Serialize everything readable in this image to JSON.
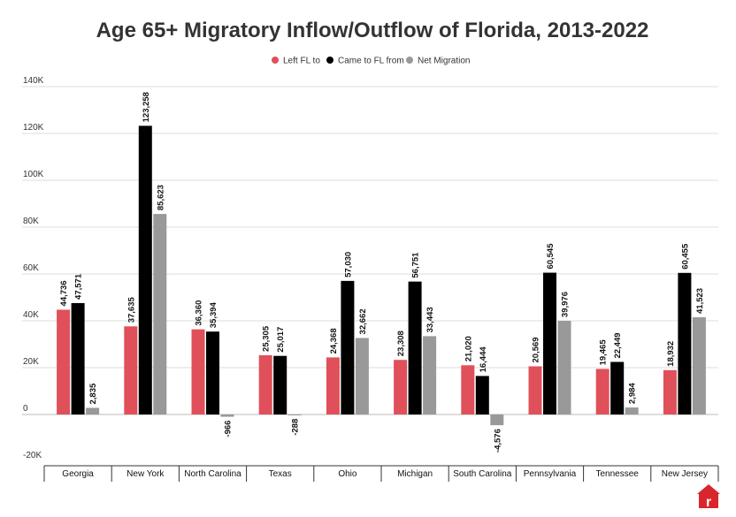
{
  "chart_data": {
    "type": "bar",
    "title": "Age 65+ Migratory Inflow/Outflow of Florida, 2013-2022",
    "categories": [
      "Georgia",
      "New York",
      "North Carolina",
      "Texas",
      "Ohio",
      "Michigan",
      "South Carolina",
      "Pennsylvania",
      "Tennessee",
      "New Jersey"
    ],
    "series": [
      {
        "name": "Left FL to",
        "color": "#e0505a",
        "values": [
          44736,
          37635,
          36360,
          25305,
          24368,
          23308,
          21020,
          20569,
          19465,
          18932
        ],
        "labels": [
          "44,736",
          "37,635",
          "36,360",
          "25,305",
          "24,368",
          "23,308",
          "21,020",
          "20,569",
          "19,465",
          "18,932"
        ]
      },
      {
        "name": "Came to FL from",
        "color": "#000000",
        "values": [
          47571,
          123258,
          35394,
          25017,
          57030,
          56751,
          16444,
          60545,
          22449,
          60455
        ],
        "labels": [
          "47,571",
          "123,258",
          "35,394",
          "25,017",
          "57,030",
          "56,751",
          "16,444",
          "60,545",
          "22,449",
          "60,455"
        ]
      },
      {
        "name": "Net Migration",
        "color": "#999999",
        "values": [
          2835,
          85623,
          -966,
          -288,
          32662,
          33443,
          -4576,
          39976,
          2984,
          41523
        ],
        "labels": [
          "2,835",
          "85,623",
          "-966",
          "-288",
          "32,662",
          "33,443",
          "-4,576",
          "39,976",
          "2,984",
          "41,523"
        ]
      }
    ],
    "y_ticks": [
      {
        "value": 140000,
        "label": "140K"
      },
      {
        "value": 120000,
        "label": "120K"
      },
      {
        "value": 100000,
        "label": "100K"
      },
      {
        "value": 80000,
        "label": "80K"
      },
      {
        "value": 60000,
        "label": "60K"
      },
      {
        "value": 40000,
        "label": "40K"
      },
      {
        "value": 20000,
        "label": "20K"
      },
      {
        "value": 0,
        "label": "0"
      },
      {
        "value": -20000,
        "label": "-20K"
      }
    ],
    "ylim": [
      -20000,
      140000
    ],
    "grid": true,
    "legend_position": "top-center"
  },
  "brand": {
    "logo_letter": "r",
    "color": "#d9262c",
    "logo_icon": "house-icon"
  }
}
